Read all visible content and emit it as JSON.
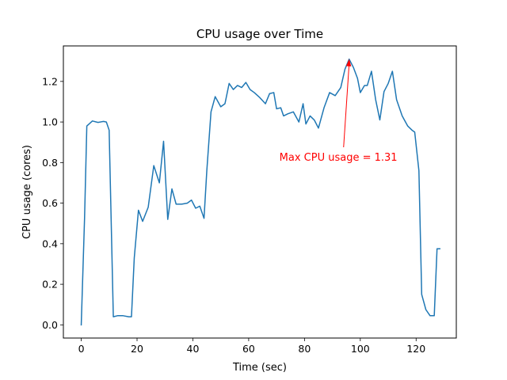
{
  "chart_data": {
    "type": "line",
    "title": "CPU usage over Time",
    "xlabel": "Time (sec)",
    "ylabel": "CPU usage (cores)",
    "xlim": [
      -6.4,
      134.4
    ],
    "ylim": [
      -0.065,
      1.375
    ],
    "xticks": [
      0,
      20,
      40,
      60,
      80,
      100,
      120
    ],
    "yticks": [
      0.0,
      0.2,
      0.4,
      0.6,
      0.8,
      1.0,
      1.2
    ],
    "grid": false,
    "line_color": "#1f77b4",
    "series": [
      {
        "x": [
          0,
          1.2,
          2,
          4,
          6,
          8,
          9,
          10,
          11.5,
          13,
          15,
          17,
          18,
          19,
          20.5,
          22,
          24,
          26,
          28,
          29.5,
          31,
          32.5,
          34,
          36,
          38,
          39.5,
          41,
          42.5,
          44,
          45,
          46.5,
          48,
          50,
          51.5,
          53,
          54.5,
          56,
          57.5,
          59,
          60.5,
          62,
          64,
          66,
          67.5,
          69,
          70,
          71.5,
          72.5,
          74,
          76,
          78,
          79.5,
          80.5,
          82,
          83.5,
          85,
          87,
          89,
          91,
          93,
          94.5,
          96,
          97.5,
          99,
          100,
          101.5,
          102.5,
          104,
          105.5,
          107,
          108.5,
          110,
          111.5,
          113,
          115,
          117,
          118.5,
          119.5,
          121,
          122,
          123.5,
          125,
          126.5,
          127.5,
          128.5
        ],
        "values": [
          0.0,
          0.53,
          0.98,
          1.005,
          0.998,
          1.003,
          1.0,
          0.96,
          0.04,
          0.045,
          0.045,
          0.04,
          0.04,
          0.33,
          0.565,
          0.51,
          0.58,
          0.785,
          0.7,
          0.905,
          0.52,
          0.67,
          0.595,
          0.595,
          0.6,
          0.615,
          0.575,
          0.585,
          0.525,
          0.76,
          1.05,
          1.125,
          1.075,
          1.09,
          1.19,
          1.16,
          1.18,
          1.17,
          1.195,
          1.16,
          1.145,
          1.12,
          1.09,
          1.14,
          1.145,
          1.065,
          1.07,
          1.03,
          1.04,
          1.05,
          1.0,
          1.09,
          0.99,
          1.03,
          1.01,
          0.97,
          1.07,
          1.145,
          1.13,
          1.17,
          1.26,
          1.31,
          1.27,
          1.215,
          1.145,
          1.18,
          1.18,
          1.25,
          1.11,
          1.01,
          1.15,
          1.19,
          1.25,
          1.11,
          1.03,
          0.98,
          0.96,
          0.95,
          0.76,
          0.15,
          0.075,
          0.045,
          0.045,
          0.375,
          0.375
        ]
      }
    ],
    "annotation": {
      "text": "Max CPU usage = 1.31",
      "xy": [
        96,
        1.31
      ],
      "xytext": [
        71,
        0.81
      ],
      "color": "#ff0000"
    }
  }
}
